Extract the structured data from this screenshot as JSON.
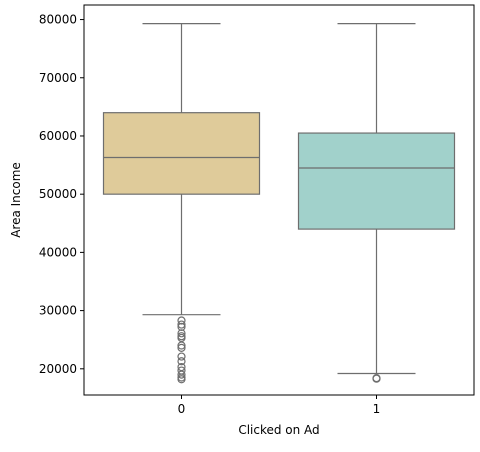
{
  "chart_data": {
    "type": "box",
    "xlabel": "Clicked on Ad",
    "ylabel": "Area Income",
    "ylim": [
      15500,
      82500
    ],
    "yticks": [
      20000,
      30000,
      40000,
      50000,
      60000,
      70000,
      80000
    ],
    "grid": false,
    "categories": [
      "0",
      "1"
    ],
    "boxes": [
      {
        "category": "0",
        "whisker_low": 29300,
        "q1": 50000,
        "median": 56300,
        "q3": 64000,
        "whisker_high": 79300,
        "outliers": [
          28300,
          27600,
          27200,
          26100,
          25600,
          25300,
          24000,
          23600,
          22100,
          21300,
          20300,
          19700,
          19000,
          18500,
          18200
        ],
        "color": "#dfcb9a"
      },
      {
        "category": "1",
        "whisker_low": 19200,
        "q1": 44000,
        "median": 54500,
        "q3": 60500,
        "whisker_high": 79300,
        "outliers": [
          18400,
          18300
        ],
        "color": "#a1d1cb"
      }
    ]
  }
}
